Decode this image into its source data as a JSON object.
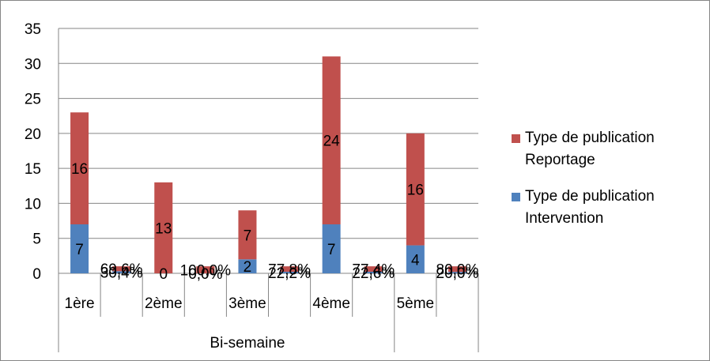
{
  "chart_data": {
    "type": "bar",
    "stacked": true,
    "categories": [
      "1ère",
      "",
      "2ème",
      "",
      "3ème",
      "",
      "4ème",
      "",
      "5ème",
      ""
    ],
    "group_label": "Bi-semaine",
    "series": [
      {
        "name_line1": "Type de publication",
        "name_line2": "Intervention",
        "color": "#4f81bd",
        "values": [
          7,
          0.304,
          0,
          0,
          2,
          0.222,
          7,
          0.226,
          4,
          0.2
        ],
        "labels": [
          "7",
          "30,4%",
          "0",
          "0,0%",
          "2",
          "22,2%",
          "7",
          "22,6%",
          "4",
          "20,0%"
        ]
      },
      {
        "name_line1": "Type de publication",
        "name_line2": "Reportage",
        "color": "#c0504d",
        "values": [
          16,
          0.696,
          13,
          1.0,
          7,
          0.778,
          24,
          0.774,
          16,
          0.8
        ],
        "labels": [
          "16",
          "69,6%",
          "13",
          "100,0%",
          "7",
          "77,8%",
          "24",
          "77,4%",
          "16",
          "80,0%"
        ]
      }
    ],
    "yticks": [
      "0",
      "5",
      "10",
      "15",
      "20",
      "25",
      "30",
      "35"
    ],
    "ylim": [
      0,
      35
    ],
    "grid": true,
    "legend_position": "right"
  }
}
